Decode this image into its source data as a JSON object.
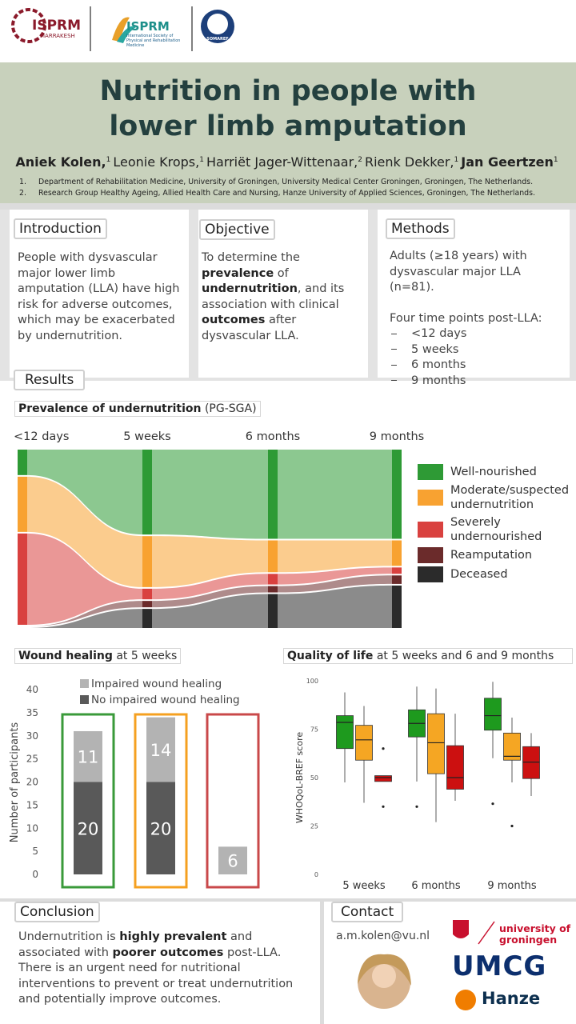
{
  "header": {
    "logo1": "ISPRM",
    "logo1_sub": "MARRAKESH",
    "logo2": "ISPRM",
    "logo2_sub": "International Society of Physical and Rehabilitation Medicine",
    "logo3": "SOMAREF"
  },
  "title": "Nutrition in people with lower limb amputation",
  "authors": [
    {
      "name": "Aniek Kolen,",
      "aff": "1",
      "bold": true
    },
    {
      "name": "Leonie Krops,",
      "aff": "1"
    },
    {
      "name": "Harriët Jager-Wittenaar,",
      "aff": "2"
    },
    {
      "name": "Rienk Dekker,",
      "aff": "1"
    },
    {
      "name": "Jan Geertzen",
      "aff": "1",
      "bold": true
    }
  ],
  "affiliations": [
    {
      "num": "1.",
      "text": "Department of Rehabilitation Medicine, University of Groningen, University Medical Center Groningen, Groningen, The Netherlands."
    },
    {
      "num": "2.",
      "text": "Research Group Healthy Ageing, Allied Health Care and Nursing, Hanze University of Applied Sciences, Groningen, The Netherlands."
    }
  ],
  "introduction": {
    "heading": "Introduction",
    "text": [
      {
        "text": "People with dysvascular major lower limb amputation (LLA) have high risk for adverse outcomes, which may be exacerbated by undernutrition."
      }
    ]
  },
  "objective": {
    "heading": "Objective",
    "text": [
      {
        "text": "To determine the "
      },
      {
        "text": "prevalence",
        "bold": true
      },
      {
        "text": " of "
      },
      {
        "text": "undernutrition",
        "bold": true
      },
      {
        "text": ", and its association with clinical "
      },
      {
        "text": "outcomes",
        "bold": true
      },
      {
        "text": " after dysvascular LLA."
      }
    ]
  },
  "methods": {
    "heading": "Methods",
    "text": "Adults (≥18 years) with dysvascular major LLA (n=81).",
    "subheading": "Four time points post-LLA:",
    "items": [
      "<12 days",
      "5 weeks",
      "6 months",
      "9 months"
    ]
  },
  "results": {
    "heading": "Results"
  },
  "sankey": {
    "type": "sankey",
    "title": [
      {
        "text": "Prevalence of undernutrition",
        "bold": true
      },
      {
        "text": " (PG-SGA)"
      }
    ],
    "stages": [
      "<12 days",
      "5 weeks",
      "6 months",
      "9 months"
    ],
    "series": [
      {
        "name": "Well-nourished",
        "color": "#2e9a35",
        "values": [
          12,
          40,
          42,
          42
        ]
      },
      {
        "name": "Moderate/suspected undernutrition",
        "color": "#f8a231",
        "values": [
          26,
          24,
          15,
          12
        ]
      },
      {
        "name": "Severely undernourished",
        "color": "#d9413f",
        "values": [
          43,
          5,
          5,
          3
        ]
      },
      {
        "name": "Reamputation",
        "color": "#6b2b2b",
        "values": [
          0,
          3,
          3,
          4
        ]
      },
      {
        "name": "Deceased",
        "color": "#2b2b2b",
        "values": [
          0,
          9,
          16,
          20
        ]
      }
    ]
  },
  "wound": {
    "type": "bar",
    "title": [
      {
        "text": "Wound healing",
        "bold": true
      },
      {
        "text": " at 5 weeks"
      }
    ],
    "ylabel": "Number of participants",
    "categories": [
      null,
      null,
      null
    ],
    "frame_colors": [
      "#3a9a3a",
      "#f5a020",
      "#c9484a"
    ],
    "series": [
      {
        "name": "No impaired wound healing",
        "color": "#595959",
        "values": [
          20,
          20,
          0
        ]
      },
      {
        "name": "Impaired wound healing",
        "color": "#b3b3b3",
        "values": [
          11,
          14,
          6
        ]
      }
    ],
    "ylim": [
      0,
      40
    ],
    "yticks": [
      0,
      5,
      10,
      15,
      20,
      25,
      30,
      35,
      40
    ]
  },
  "qol": {
    "type": "box",
    "title": [
      {
        "text": "Quality of life",
        "bold": true
      },
      {
        "text": " at 5 weeks and 6 and 9 months"
      }
    ],
    "ylabel": "WHOQoL-BREF score",
    "categories": [
      "5 weeks",
      "6 months",
      "9 months"
    ],
    "ylim": [
      0,
      100
    ],
    "yticks": [
      0,
      25,
      50,
      75,
      100
    ],
    "series": [
      {
        "color": "#1e9a1e",
        "boxes": [
          {
            "min": 47.5,
            "q1": 65,
            "median": 78.5,
            "q3": 82,
            "max": 94,
            "outliers": []
          },
          {
            "min": 48,
            "q1": 71,
            "median": 78,
            "q3": 85,
            "max": 97,
            "outliers": [
              35
            ]
          },
          {
            "min": 60,
            "q1": 74.5,
            "median": 82,
            "q3": 91,
            "max": 99.5,
            "outliers": [
              36.5
            ]
          }
        ]
      },
      {
        "color": "#f5a623",
        "boxes": [
          {
            "min": 37,
            "q1": 59,
            "median": 69.5,
            "q3": 77,
            "max": 87,
            "outliers": []
          },
          {
            "min": 27,
            "q1": 52,
            "median": 68,
            "q3": 83,
            "max": 96,
            "outliers": []
          },
          {
            "min": 47.5,
            "q1": 59,
            "median": 61,
            "q3": 73,
            "max": 81,
            "outliers": [
              25
            ]
          }
        ]
      },
      {
        "color": "#cc1010",
        "boxes": [
          {
            "min": 48,
            "q1": 48,
            "median": 50,
            "q3": 51,
            "max": 51,
            "outliers": [
              65,
              35
            ]
          },
          {
            "min": 38,
            "q1": 44,
            "median": 50,
            "q3": 66.5,
            "max": 83,
            "outliers": []
          },
          {
            "min": 40.5,
            "q1": 49.5,
            "median": 58,
            "q3": 66,
            "max": 73,
            "outliers": []
          }
        ]
      }
    ]
  },
  "conclusion": {
    "heading": "Conclusion",
    "paragraphs": [
      [
        {
          "text": "Undernutrition is "
        },
        {
          "text": "highly prevalent",
          "bold": true
        },
        {
          "text": " and associated with "
        },
        {
          "text": "poorer outcomes",
          "bold": true
        },
        {
          "text": " post-LLA."
        }
      ],
      [
        {
          "text": "There is an urgent need for nutritional interventions to prevent or treat undernutrition and potentially improve outcomes."
        }
      ]
    ]
  },
  "contact": {
    "heading": "Contact",
    "email": "a.m.kolen@vu.nl",
    "logos": [
      "university of groningen",
      "UMCG",
      "Hanze"
    ]
  }
}
